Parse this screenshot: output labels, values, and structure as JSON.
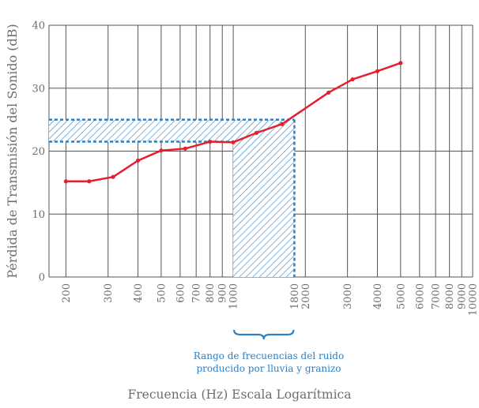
{
  "colors": {
    "series": "#e4202c",
    "highlight": "#2f7fc1",
    "grid": "#555555",
    "text": "#6e6e6e"
  },
  "chart_data": {
    "type": "line",
    "xlabel": "Frecuencia (Hz) Escala Logarítmica",
    "ylabel": "Pérdida de Transmisión del Sonido (dB)",
    "x_scale": "log",
    "xlim": [
      170,
      10000
    ],
    "ylim": [
      0,
      40
    ],
    "y_ticks": [
      "0",
      "10",
      "20",
      "30",
      "40"
    ],
    "y_tick_values": [
      0,
      10,
      20,
      30,
      40
    ],
    "x_grid_values": [
      200,
      300,
      400,
      500,
      600,
      700,
      800,
      900,
      1000,
      2000,
      3000,
      4000,
      5000,
      6000,
      7000,
      8000,
      9000,
      10000
    ],
    "x_ticks": [
      "200",
      "300",
      "400",
      "500",
      "600",
      "700",
      "800",
      "900",
      "1000",
      "1800",
      "2000",
      "3000",
      "4000",
      "5000",
      "6000",
      "7000",
      "8000",
      "9000",
      "10000"
    ],
    "x_tick_values": [
      200,
      300,
      400,
      500,
      600,
      700,
      800,
      900,
      1000,
      1800,
      2000,
      3000,
      4000,
      5000,
      6000,
      7000,
      8000,
      9000,
      10000
    ],
    "grid": true,
    "series": [
      {
        "x": [
          200,
          250,
          315,
          400,
          500,
          630,
          800,
          1000,
          1250,
          1600,
          2500,
          3150,
          4000,
          5000
        ],
        "y": [
          15.2,
          15.2,
          15.9,
          18.5,
          20.1,
          20.4,
          21.5,
          21.4,
          22.9,
          24.3,
          29.3,
          31.4,
          32.7,
          34.0
        ]
      }
    ],
    "highlight": {
      "freq_range": [
        1000,
        1800
      ],
      "db_range": [
        21.5,
        25
      ]
    },
    "annotation": [
      "Rango de frecuencias del ruido",
      "producido por lluvia y granizo"
    ]
  }
}
